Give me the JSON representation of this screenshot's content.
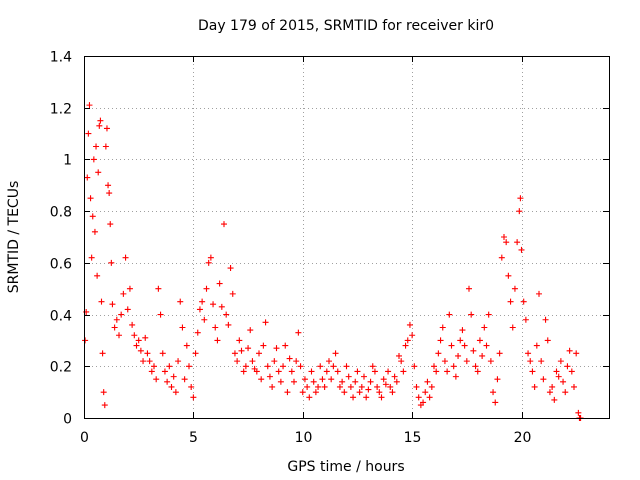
{
  "chart_data": {
    "type": "scatter",
    "title": "Day 179 of 2015, SRMTID for receiver kir0",
    "xlabel": "GPS time / hours",
    "ylabel": "SRMTID / TECUs",
    "xlim": [
      0,
      24
    ],
    "ylim": [
      0,
      1.4
    ],
    "xticks": [
      0,
      5,
      10,
      15,
      20
    ],
    "yticks": [
      0,
      0.2,
      0.4,
      0.6,
      0.8,
      1,
      1.2,
      1.4
    ],
    "xtick_labels": [
      "0",
      "5",
      "10",
      "15",
      "20"
    ],
    "ytick_labels": [
      "0",
      "0.2",
      "0.4",
      "0.6",
      "0.8",
      "1",
      "1.2",
      "1.4"
    ],
    "grid": true,
    "series": [
      {
        "name": "SRMTID",
        "color": "#ff0000",
        "marker": "plus",
        "points": [
          [
            0.05,
            0.3
          ],
          [
            0.1,
            0.41
          ],
          [
            0.15,
            0.93
          ],
          [
            0.2,
            1.1
          ],
          [
            0.25,
            1.21
          ],
          [
            0.3,
            0.85
          ],
          [
            0.35,
            0.62
          ],
          [
            0.4,
            0.78
          ],
          [
            0.45,
            1.0
          ],
          [
            0.5,
            0.72
          ],
          [
            0.55,
            1.05
          ],
          [
            0.6,
            0.55
          ],
          [
            0.65,
            0.95
          ],
          [
            0.7,
            1.13
          ],
          [
            0.75,
            1.15
          ],
          [
            0.8,
            0.45
          ],
          [
            0.85,
            0.25
          ],
          [
            0.9,
            0.1
          ],
          [
            0.95,
            0.05
          ],
          [
            1.0,
            1.05
          ],
          [
            1.05,
            1.12
          ],
          [
            1.1,
            0.9
          ],
          [
            1.15,
            0.87
          ],
          [
            1.2,
            0.75
          ],
          [
            1.25,
            0.6
          ],
          [
            1.3,
            0.44
          ],
          [
            1.4,
            0.35
          ],
          [
            1.5,
            0.38
          ],
          [
            1.6,
            0.32
          ],
          [
            1.7,
            0.4
          ],
          [
            1.8,
            0.48
          ],
          [
            1.9,
            0.62
          ],
          [
            2.0,
            0.42
          ],
          [
            2.1,
            0.5
          ],
          [
            2.2,
            0.36
          ],
          [
            2.3,
            0.32
          ],
          [
            2.4,
            0.28
          ],
          [
            2.5,
            0.3
          ],
          [
            2.6,
            0.26
          ],
          [
            2.7,
            0.22
          ],
          [
            2.8,
            0.31
          ],
          [
            2.9,
            0.25
          ],
          [
            3.0,
            0.22
          ],
          [
            3.1,
            0.18
          ],
          [
            3.2,
            0.2
          ],
          [
            3.3,
            0.15
          ],
          [
            3.4,
            0.5
          ],
          [
            3.5,
            0.4
          ],
          [
            3.6,
            0.25
          ],
          [
            3.7,
            0.18
          ],
          [
            3.8,
            0.14
          ],
          [
            3.9,
            0.2
          ],
          [
            4.0,
            0.12
          ],
          [
            4.1,
            0.16
          ],
          [
            4.2,
            0.1
          ],
          [
            4.3,
            0.22
          ],
          [
            4.4,
            0.45
          ],
          [
            4.5,
            0.35
          ],
          [
            4.6,
            0.15
          ],
          [
            4.7,
            0.28
          ],
          [
            4.8,
            0.2
          ],
          [
            4.9,
            0.12
          ],
          [
            5.0,
            0.08
          ],
          [
            5.1,
            0.25
          ],
          [
            5.2,
            0.33
          ],
          [
            5.3,
            0.42
          ],
          [
            5.4,
            0.45
          ],
          [
            5.5,
            0.38
          ],
          [
            5.6,
            0.5
          ],
          [
            5.7,
            0.6
          ],
          [
            5.8,
            0.62
          ],
          [
            5.9,
            0.44
          ],
          [
            6.0,
            0.35
          ],
          [
            6.1,
            0.3
          ],
          [
            6.2,
            0.52
          ],
          [
            6.3,
            0.43
          ],
          [
            6.4,
            0.75
          ],
          [
            6.5,
            0.4
          ],
          [
            6.6,
            0.36
          ],
          [
            6.7,
            0.58
          ],
          [
            6.8,
            0.48
          ],
          [
            6.9,
            0.25
          ],
          [
            7.0,
            0.22
          ],
          [
            7.1,
            0.3
          ],
          [
            7.2,
            0.26
          ],
          [
            7.3,
            0.18
          ],
          [
            7.4,
            0.2
          ],
          [
            7.5,
            0.27
          ],
          [
            7.6,
            0.34
          ],
          [
            7.7,
            0.22
          ],
          [
            7.8,
            0.19
          ],
          [
            7.9,
            0.18
          ],
          [
            8.0,
            0.25
          ],
          [
            8.1,
            0.15
          ],
          [
            8.2,
            0.28
          ],
          [
            8.3,
            0.37
          ],
          [
            8.4,
            0.2
          ],
          [
            8.5,
            0.16
          ],
          [
            8.6,
            0.12
          ],
          [
            8.7,
            0.22
          ],
          [
            8.8,
            0.27
          ],
          [
            8.9,
            0.18
          ],
          [
            9.0,
            0.14
          ],
          [
            9.1,
            0.2
          ],
          [
            9.2,
            0.28
          ],
          [
            9.3,
            0.1
          ],
          [
            9.4,
            0.23
          ],
          [
            9.5,
            0.18
          ],
          [
            9.6,
            0.14
          ],
          [
            9.7,
            0.22
          ],
          [
            9.8,
            0.33
          ],
          [
            9.9,
            0.2
          ],
          [
            10.0,
            0.1
          ],
          [
            10.1,
            0.15
          ],
          [
            10.2,
            0.12
          ],
          [
            10.3,
            0.08
          ],
          [
            10.4,
            0.18
          ],
          [
            10.5,
            0.14
          ],
          [
            10.6,
            0.1
          ],
          [
            10.7,
            0.12
          ],
          [
            10.8,
            0.2
          ],
          [
            10.9,
            0.15
          ],
          [
            11.0,
            0.12
          ],
          [
            11.1,
            0.18
          ],
          [
            11.2,
            0.22
          ],
          [
            11.3,
            0.15
          ],
          [
            11.4,
            0.2
          ],
          [
            11.5,
            0.25
          ],
          [
            11.6,
            0.18
          ],
          [
            11.7,
            0.12
          ],
          [
            11.8,
            0.14
          ],
          [
            11.9,
            0.1
          ],
          [
            12.0,
            0.2
          ],
          [
            12.1,
            0.16
          ],
          [
            12.2,
            0.12
          ],
          [
            12.3,
            0.08
          ],
          [
            12.4,
            0.14
          ],
          [
            12.5,
            0.18
          ],
          [
            12.6,
            0.1
          ],
          [
            12.7,
            0.12
          ],
          [
            12.8,
            0.16
          ],
          [
            12.9,
            0.08
          ],
          [
            13.0,
            0.11
          ],
          [
            13.1,
            0.14
          ],
          [
            13.2,
            0.2
          ],
          [
            13.3,
            0.18
          ],
          [
            13.4,
            0.12
          ],
          [
            13.5,
            0.1
          ],
          [
            13.6,
            0.08
          ],
          [
            13.7,
            0.15
          ],
          [
            13.8,
            0.13
          ],
          [
            13.9,
            0.18
          ],
          [
            14.0,
            0.12
          ],
          [
            14.1,
            0.1
          ],
          [
            14.2,
            0.16
          ],
          [
            14.3,
            0.14
          ],
          [
            14.4,
            0.24
          ],
          [
            14.5,
            0.22
          ],
          [
            14.6,
            0.18
          ],
          [
            14.7,
            0.28
          ],
          [
            14.8,
            0.3
          ],
          [
            14.9,
            0.36
          ],
          [
            15.0,
            0.32
          ],
          [
            15.1,
            0.2
          ],
          [
            15.2,
            0.12
          ],
          [
            15.3,
            0.08
          ],
          [
            15.4,
            0.05
          ],
          [
            15.5,
            0.06
          ],
          [
            15.6,
            0.1
          ],
          [
            15.7,
            0.14
          ],
          [
            15.8,
            0.08
          ],
          [
            15.9,
            0.12
          ],
          [
            16.0,
            0.2
          ],
          [
            16.1,
            0.18
          ],
          [
            16.2,
            0.25
          ],
          [
            16.3,
            0.3
          ],
          [
            16.4,
            0.35
          ],
          [
            16.5,
            0.22
          ],
          [
            16.6,
            0.18
          ],
          [
            16.7,
            0.4
          ],
          [
            16.8,
            0.28
          ],
          [
            16.9,
            0.2
          ],
          [
            17.0,
            0.16
          ],
          [
            17.1,
            0.24
          ],
          [
            17.2,
            0.3
          ],
          [
            17.3,
            0.34
          ],
          [
            17.4,
            0.28
          ],
          [
            17.5,
            0.22
          ],
          [
            17.6,
            0.5
          ],
          [
            17.7,
            0.4
          ],
          [
            17.8,
            0.26
          ],
          [
            17.9,
            0.2
          ],
          [
            18.0,
            0.18
          ],
          [
            18.1,
            0.3
          ],
          [
            18.2,
            0.24
          ],
          [
            18.3,
            0.35
          ],
          [
            18.4,
            0.28
          ],
          [
            18.5,
            0.4
          ],
          [
            18.6,
            0.22
          ],
          [
            18.7,
            0.1
          ],
          [
            18.8,
            0.06
          ],
          [
            18.9,
            0.15
          ],
          [
            19.0,
            0.25
          ],
          [
            19.1,
            0.62
          ],
          [
            19.2,
            0.7
          ],
          [
            19.3,
            0.68
          ],
          [
            19.4,
            0.55
          ],
          [
            19.5,
            0.45
          ],
          [
            19.6,
            0.35
          ],
          [
            19.7,
            0.5
          ],
          [
            19.8,
            0.68
          ],
          [
            19.9,
            0.8
          ],
          [
            19.95,
            0.85
          ],
          [
            20.0,
            0.65
          ],
          [
            20.1,
            0.45
          ],
          [
            20.2,
            0.38
          ],
          [
            20.3,
            0.25
          ],
          [
            20.4,
            0.22
          ],
          [
            20.5,
            0.18
          ],
          [
            20.6,
            0.12
          ],
          [
            20.7,
            0.28
          ],
          [
            20.8,
            0.48
          ],
          [
            20.9,
            0.22
          ],
          [
            21.0,
            0.15
          ],
          [
            21.1,
            0.38
          ],
          [
            21.2,
            0.3
          ],
          [
            21.3,
            0.1
          ],
          [
            21.4,
            0.12
          ],
          [
            21.5,
            0.07
          ],
          [
            21.6,
            0.18
          ],
          [
            21.7,
            0.16
          ],
          [
            21.8,
            0.22
          ],
          [
            21.9,
            0.14
          ],
          [
            22.0,
            0.1
          ],
          [
            22.1,
            0.2
          ],
          [
            22.2,
            0.26
          ],
          [
            22.3,
            0.18
          ],
          [
            22.4,
            0.12
          ],
          [
            22.5,
            0.25
          ],
          [
            22.6,
            0.02
          ],
          [
            22.65,
            0.0
          ],
          [
            22.7,
            0.0
          ]
        ]
      }
    ]
  }
}
